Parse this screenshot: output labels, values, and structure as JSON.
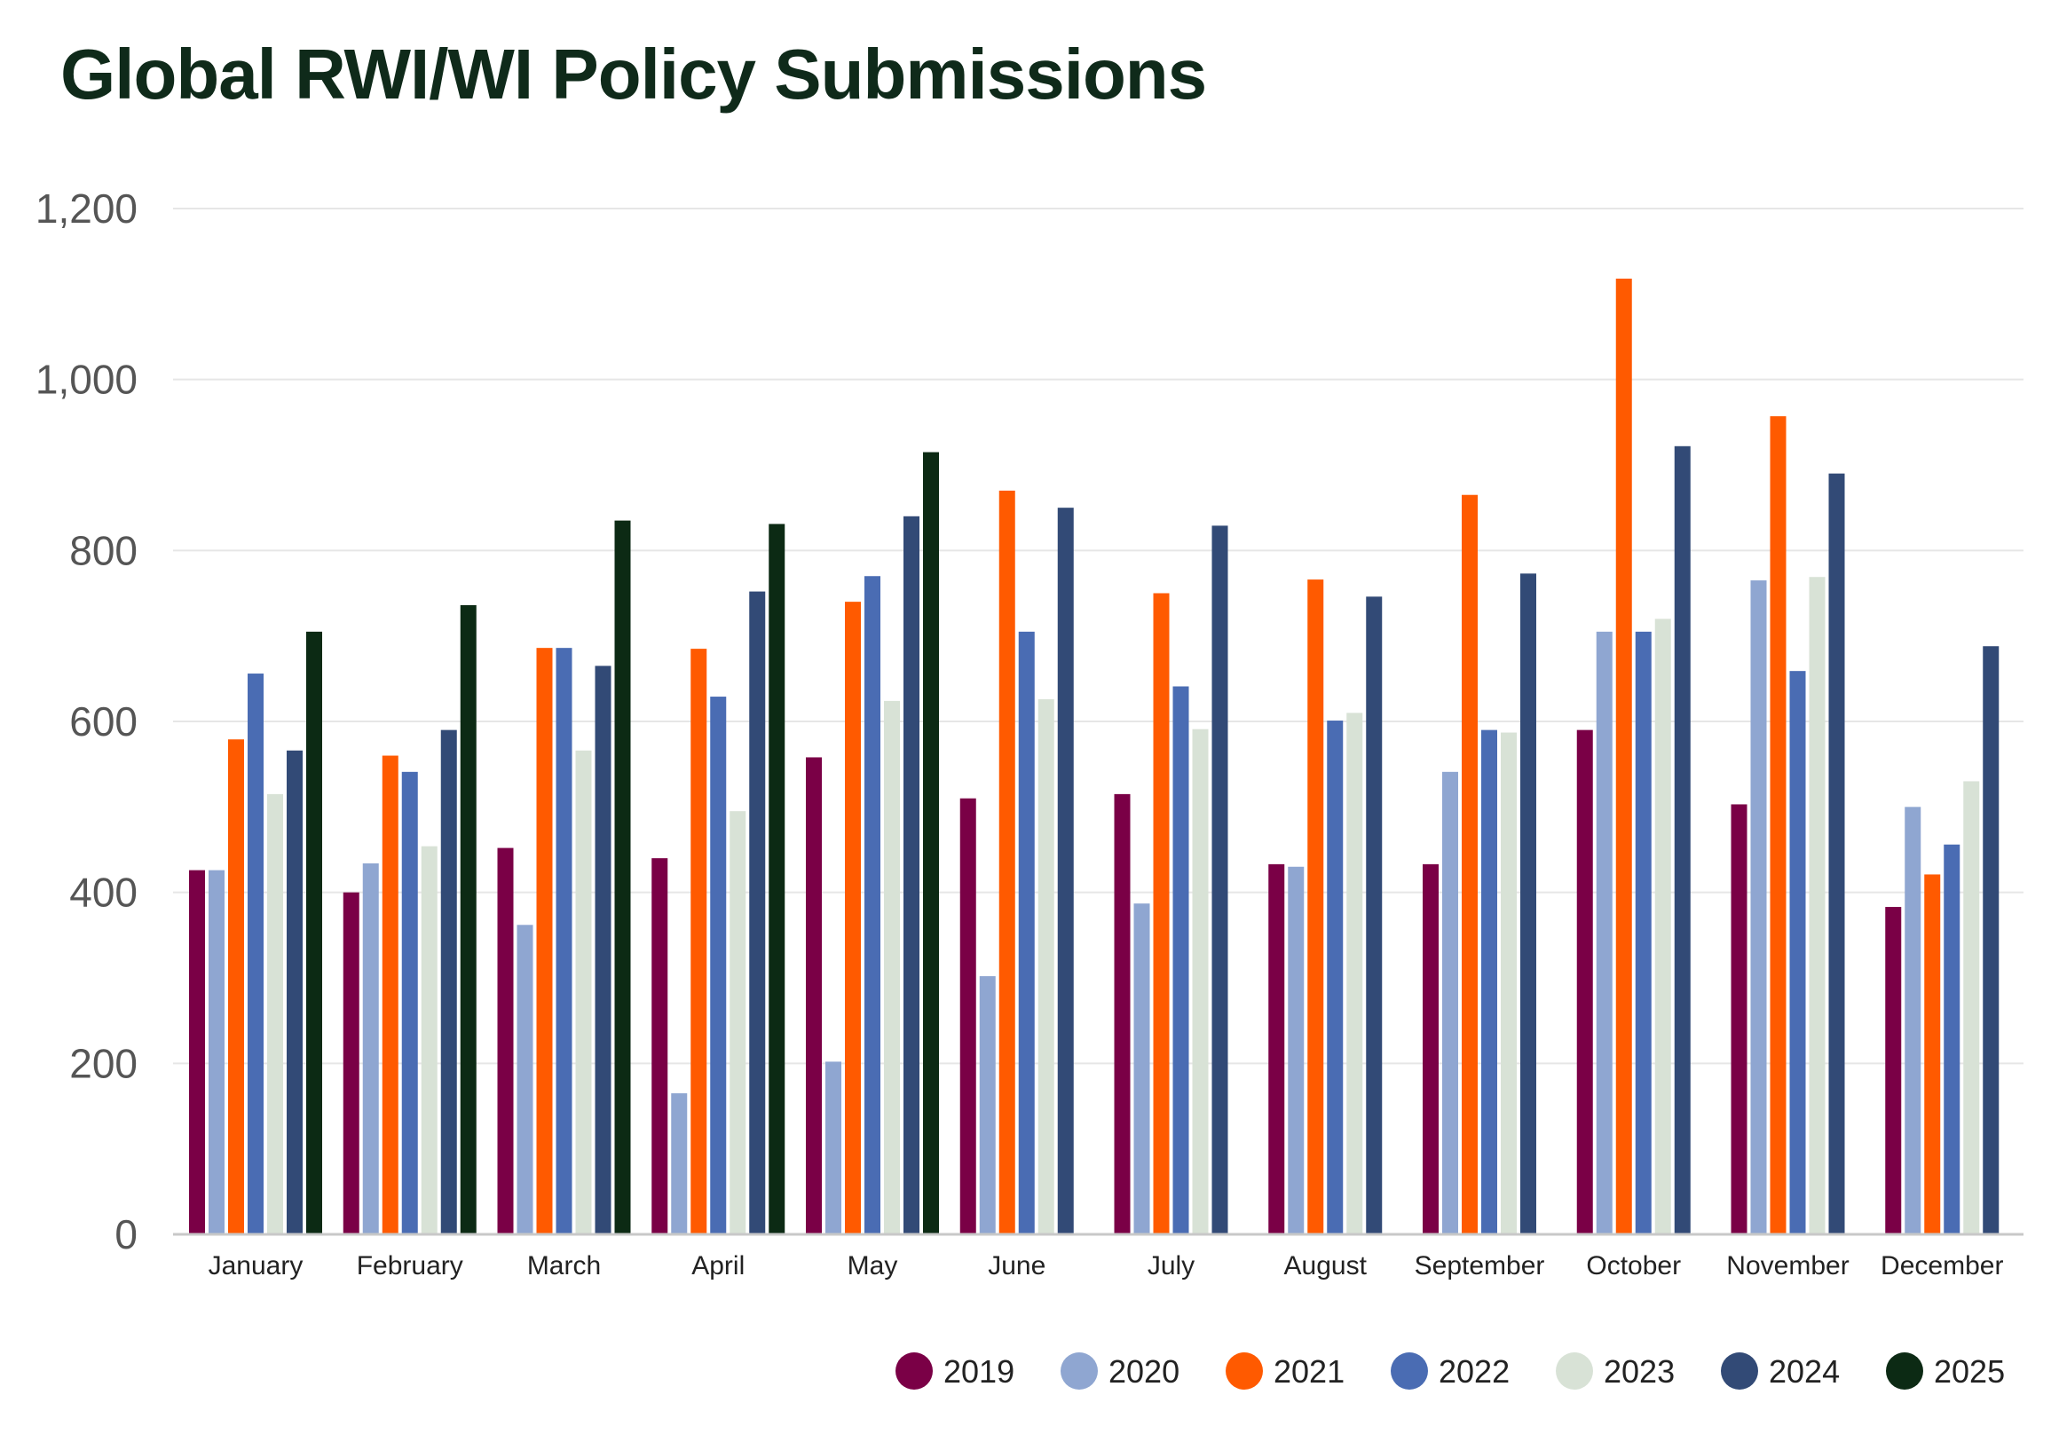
{
  "chart_data": {
    "type": "bar",
    "title": "Global RWI/WI Policy Submissions",
    "xlabel": "",
    "ylabel": "",
    "ylim": [
      0,
      1200
    ],
    "yticks": [
      0,
      200,
      400,
      600,
      800,
      1000,
      1200
    ],
    "ytick_labels": [
      "0",
      "200",
      "400",
      "600",
      "800",
      "1,000",
      "1,200"
    ],
    "grid": true,
    "legend_position": "bottom-right",
    "categories": [
      "January",
      "February",
      "March",
      "April",
      "May",
      "June",
      "July",
      "August",
      "September",
      "October",
      "November",
      "December"
    ],
    "series": [
      {
        "name": "2019",
        "color": "#7a0046",
        "values": [
          426,
          400,
          452,
          440,
          558,
          510,
          515,
          433,
          433,
          590,
          503,
          383
        ]
      },
      {
        "name": "2020",
        "color": "#8fa6d1",
        "values": [
          426,
          434,
          362,
          165,
          202,
          302,
          387,
          430,
          541,
          705,
          765,
          500
        ]
      },
      {
        "name": "2021",
        "color": "#ff5a00",
        "values": [
          579,
          560,
          686,
          685,
          740,
          870,
          750,
          766,
          865,
          1118,
          957,
          421
        ]
      },
      {
        "name": "2022",
        "color": "#4a6cb3",
        "values": [
          656,
          541,
          686,
          629,
          770,
          705,
          641,
          601,
          590,
          705,
          659,
          456
        ]
      },
      {
        "name": "2023",
        "color": "#d8e2d6",
        "values": [
          515,
          454,
          566,
          495,
          624,
          626,
          591,
          610,
          587,
          720,
          769,
          530
        ]
      },
      {
        "name": "2024",
        "color": "#324a76",
        "values": [
          566,
          590,
          665,
          752,
          840,
          850,
          829,
          746,
          773,
          922,
          890,
          688
        ]
      },
      {
        "name": "2025",
        "color": "#0c2a14",
        "values": [
          705,
          736,
          835,
          831,
          915,
          null,
          null,
          null,
          null,
          null,
          null,
          null
        ]
      }
    ]
  }
}
